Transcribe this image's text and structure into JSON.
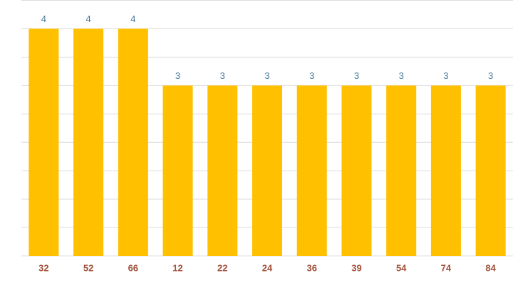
{
  "chart_data": {
    "type": "bar",
    "categories": [
      "32",
      "52",
      "66",
      "12",
      "22",
      "24",
      "36",
      "39",
      "54",
      "74",
      "84"
    ],
    "values": [
      4,
      4,
      4,
      3,
      3,
      3,
      3,
      3,
      3,
      3,
      3
    ],
    "color": "#ffc000",
    "ylim": [
      0,
      4.5
    ],
    "yticks": [
      0,
      0.5,
      1,
      1.5,
      2,
      2.5,
      3,
      3.5,
      4,
      4.5
    ],
    "grid": true
  }
}
